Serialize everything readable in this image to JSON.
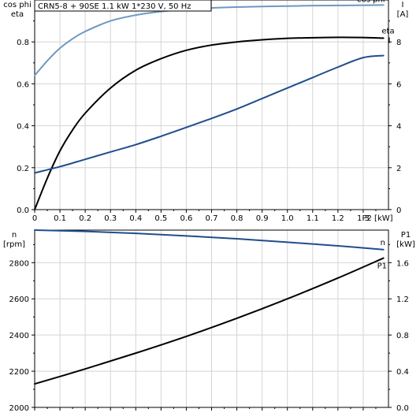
{
  "chart_data": [
    {
      "type": "line",
      "title": "CRN5-8 + 90SE   1.1 kW   1*230 V, 50 Hz",
      "xlabel": "P2 [kW]",
      "xlim": [
        0,
        1.4
      ],
      "x_ticks": [
        "0",
        "0.1",
        "0.2",
        "0.3",
        "0.4",
        "0.5",
        "0.6",
        "0.7",
        "0.8",
        "0.9",
        "1.0",
        "1.1",
        "1.2",
        "1.3"
      ],
      "y_left": {
        "label_line1": "cos phi",
        "label_line2": "eta",
        "lim": [
          0,
          1.0
        ],
        "ticks": [
          "0.0",
          "0.2",
          "0.4",
          "0.6",
          "0.8"
        ]
      },
      "y_right": {
        "label_line1": "I",
        "label_line2": "[A]",
        "lim": [
          0,
          10
        ],
        "ticks": [
          "0",
          "2",
          "4",
          "6",
          "8"
        ]
      },
      "grid": true,
      "series": [
        {
          "name": "cos phi",
          "axis": "left",
          "color": "#6f98c1",
          "x": [
            0,
            0.05,
            0.1,
            0.15,
            0.2,
            0.3,
            0.4,
            0.5,
            0.6,
            0.7,
            0.8,
            0.9,
            1.0,
            1.1,
            1.2,
            1.3,
            1.38
          ],
          "y": [
            0.64,
            0.71,
            0.77,
            0.815,
            0.85,
            0.9,
            0.928,
            0.945,
            0.955,
            0.962,
            0.966,
            0.969,
            0.971,
            0.973,
            0.974,
            0.975,
            0.976
          ]
        },
        {
          "name": "eta",
          "axis": "left",
          "color": "#000000",
          "x": [
            0,
            0.05,
            0.1,
            0.15,
            0.2,
            0.3,
            0.4,
            0.5,
            0.6,
            0.7,
            0.8,
            0.9,
            1.0,
            1.1,
            1.2,
            1.3,
            1.38
          ],
          "y": [
            0.0,
            0.15,
            0.28,
            0.38,
            0.46,
            0.58,
            0.665,
            0.72,
            0.76,
            0.785,
            0.8,
            0.81,
            0.817,
            0.82,
            0.822,
            0.821,
            0.818
          ]
        },
        {
          "name": "I",
          "axis": "right",
          "color": "#1f4e8c",
          "x": [
            0,
            0.1,
            0.2,
            0.3,
            0.4,
            0.5,
            0.6,
            0.7,
            0.8,
            0.9,
            1.0,
            1.1,
            1.2,
            1.3,
            1.38
          ],
          "y": [
            1.75,
            2.05,
            2.4,
            2.75,
            3.1,
            3.5,
            3.92,
            4.35,
            4.8,
            5.3,
            5.8,
            6.3,
            6.8,
            7.25,
            7.35
          ]
        }
      ]
    },
    {
      "type": "line",
      "xlim": [
        0,
        1.4
      ],
      "y_left": {
        "label_line1": "n",
        "label_line2": "[rpm]",
        "lim": [
          2000,
          2980
        ],
        "ticks": [
          "2000",
          "2200",
          "2400",
          "2600",
          "2800"
        ]
      },
      "y_right": {
        "label_line1": "P1",
        "label_line2": "[kW]",
        "lim": [
          0,
          1.96
        ],
        "ticks": [
          "0.0",
          "0.4",
          "0.8",
          "1.2",
          "1.6"
        ]
      },
      "grid": true,
      "series": [
        {
          "name": "n",
          "axis": "left",
          "color": "#1f4e8c",
          "x": [
            0,
            0.2,
            0.4,
            0.6,
            0.8,
            1.0,
            1.2,
            1.38
          ],
          "y": [
            2980,
            2973,
            2962,
            2948,
            2932,
            2913,
            2893,
            2872
          ]
        },
        {
          "name": "P1",
          "axis": "right",
          "color": "#000000",
          "x": [
            0,
            0.2,
            0.4,
            0.6,
            0.8,
            1.0,
            1.2,
            1.38
          ],
          "y": [
            0.26,
            0.425,
            0.6,
            0.785,
            0.985,
            1.2,
            1.43,
            1.65
          ]
        }
      ]
    }
  ]
}
